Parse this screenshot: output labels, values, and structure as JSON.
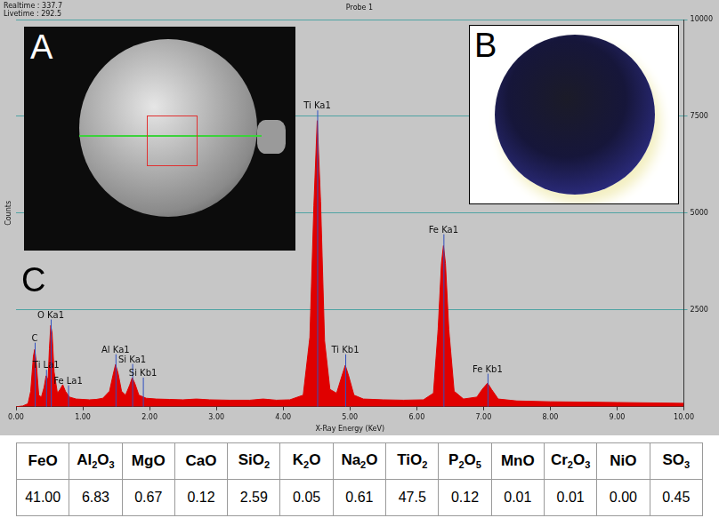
{
  "header": {
    "realtime": "Realtime : 337.7",
    "livetime": "Livetime : 292.5",
    "probe": "Probe 1"
  },
  "panel_labels": [
    "A",
    "B",
    "C"
  ],
  "chart_data": {
    "type": "area",
    "xlabel": "X-Ray Energy (KeV)",
    "ylabel": "Counts",
    "color": "#e00000",
    "grid": true,
    "x": [
      0.0,
      0.1,
      0.18,
      0.22,
      0.26,
      0.28,
      0.3,
      0.34,
      0.38,
      0.42,
      0.45,
      0.48,
      0.5,
      0.52,
      0.54,
      0.57,
      0.62,
      0.66,
      0.7,
      0.74,
      0.8,
      0.9,
      1.0,
      1.1,
      1.2,
      1.3,
      1.4,
      1.45,
      1.49,
      1.53,
      1.58,
      1.64,
      1.7,
      1.74,
      1.78,
      1.84,
      1.95,
      2.1,
      2.3,
      2.5,
      2.7,
      2.9,
      3.2,
      3.5,
      3.7,
      3.9,
      4.1,
      4.3,
      4.4,
      4.46,
      4.51,
      4.56,
      4.62,
      4.7,
      4.8,
      4.88,
      4.93,
      4.98,
      5.06,
      5.2,
      5.5,
      5.8,
      6.1,
      6.25,
      6.32,
      6.37,
      6.4,
      6.43,
      6.48,
      6.56,
      6.7,
      6.9,
      6.98,
      7.06,
      7.12,
      7.22,
      7.5,
      8.0,
      8.5,
      9.0,
      9.5,
      10.0
    ],
    "values": [
      0,
      20,
      80,
      400,
      1300,
      1480,
      1200,
      300,
      250,
      500,
      800,
      700,
      1500,
      2100,
      1900,
      900,
      350,
      450,
      570,
      400,
      250,
      200,
      190,
      180,
      190,
      220,
      400,
      800,
      1090,
      850,
      400,
      300,
      550,
      750,
      600,
      300,
      220,
      200,
      190,
      180,
      200,
      180,
      170,
      170,
      200,
      170,
      180,
      300,
      1800,
      5200,
      7390,
      5300,
      1700,
      450,
      350,
      800,
      1070,
      800,
      300,
      200,
      180,
      170,
      180,
      350,
      2000,
      3700,
      4160,
      3700,
      2000,
      400,
      200,
      250,
      450,
      610,
      450,
      200,
      150,
      130,
      120,
      110,
      100,
      90
    ],
    "xlim": [
      0,
      10
    ],
    "xticks": [
      {
        "value": 0,
        "label": "0.00"
      },
      {
        "value": 1,
        "label": "1.00"
      },
      {
        "value": 2,
        "label": "2.00"
      },
      {
        "value": 3,
        "label": "3.00"
      },
      {
        "value": 4,
        "label": "4.00"
      },
      {
        "value": 5,
        "label": "5.00"
      },
      {
        "value": 6,
        "label": "6.00"
      },
      {
        "value": 7,
        "label": "7.00"
      },
      {
        "value": 8,
        "label": "8.00"
      },
      {
        "value": 9,
        "label": "9.00"
      },
      {
        "value": 10,
        "label": "10.00"
      }
    ],
    "ylim": [
      0,
      10000
    ],
    "yticks": [
      2500,
      5000,
      7500,
      10000
    ],
    "annotations": [
      {
        "text": "C",
        "x": 0.28,
        "y": 1700
      },
      {
        "text": "Ti La1",
        "x": 0.45,
        "y": 1000
      },
      {
        "text": "O Ka1",
        "x": 0.52,
        "y": 2300
      },
      {
        "text": "Fe La1",
        "x": 0.78,
        "y": 600
      },
      {
        "text": "Al Ka1",
        "x": 1.49,
        "y": 1400
      },
      {
        "text": "Si Ka1",
        "x": 1.74,
        "y": 1150
      },
      {
        "text": "Si Kb1",
        "x": 1.9,
        "y": 800
      },
      {
        "text": "Ti Ka1",
        "x": 4.51,
        "y": 7700
      },
      {
        "text": "Ti Kb1",
        "x": 4.93,
        "y": 1400
      },
      {
        "text": "Fe Ka1",
        "x": 6.4,
        "y": 4500
      },
      {
        "text": "Fe Kb1",
        "x": 7.06,
        "y": 900
      }
    ]
  },
  "table": {
    "header": [
      "FeO",
      "Al2O3",
      "MgO",
      "CaO",
      "SiO2",
      "K2O",
      "Na2O",
      "TiO2",
      "P2O5",
      "MnO",
      "Cr2O3",
      "NiO",
      "SO3"
    ],
    "rows": [
      [
        "41.00",
        "6.83",
        "0.67",
        "0.12",
        "2.59",
        "0.05",
        "0.61",
        "47.5",
        "0.12",
        "0.01",
        "0.01",
        "0.00",
        "0.45"
      ]
    ]
  }
}
